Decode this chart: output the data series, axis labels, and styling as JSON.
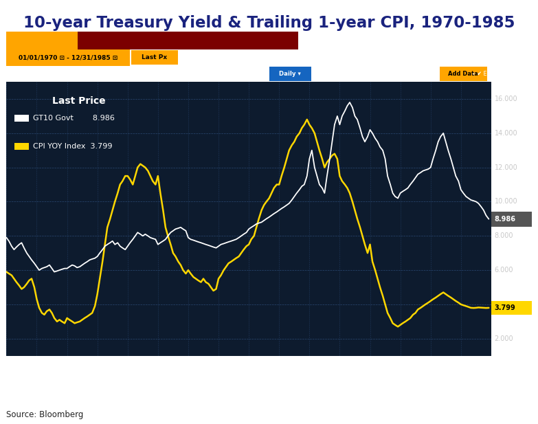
{
  "title": "10-year Treasury Yield & Trailing 1-year CPI, 1970-1985",
  "source": "Source: Bloomberg",
  "title_color": "#1a237e",
  "bg_dark": "#0d1b2e",
  "bg_plot": "#0d1b2e",
  "outer_bg": "#ffffff",
  "gt10_color": "#ffffff",
  "cpi_color": "#FFD700",
  "last_price_gt10": 8.986,
  "last_price_cpi": 3.799,
  "ylim": [
    1.0,
    17.0
  ],
  "yticks": [
    2.0,
    4.0,
    6.0,
    8.0,
    10.0,
    12.0,
    14.0,
    16.0
  ],
  "gt10_data_x": [
    1970.0,
    1970.08,
    1970.17,
    1970.25,
    1970.33,
    1970.42,
    1970.5,
    1970.58,
    1970.67,
    1970.75,
    1970.83,
    1970.92,
    1971.0,
    1971.08,
    1971.17,
    1971.25,
    1971.33,
    1971.42,
    1971.5,
    1971.58,
    1971.67,
    1971.75,
    1971.83,
    1971.92,
    1972.0,
    1972.08,
    1972.17,
    1972.25,
    1972.33,
    1972.42,
    1972.5,
    1972.58,
    1972.67,
    1972.75,
    1972.83,
    1972.92,
    1973.0,
    1973.08,
    1973.17,
    1973.25,
    1973.33,
    1973.42,
    1973.5,
    1973.58,
    1973.67,
    1973.75,
    1973.83,
    1973.92,
    1974.0,
    1974.08,
    1974.17,
    1974.25,
    1974.33,
    1974.42,
    1974.5,
    1974.58,
    1974.67,
    1974.75,
    1974.83,
    1974.92,
    1975.0,
    1975.08,
    1975.17,
    1975.25,
    1975.33,
    1975.42,
    1975.5,
    1975.58,
    1975.67,
    1975.75,
    1975.83,
    1975.92,
    1976.0,
    1976.08,
    1976.17,
    1976.25,
    1976.33,
    1976.42,
    1976.5,
    1976.58,
    1976.67,
    1976.75,
    1976.83,
    1976.92,
    1977.0,
    1977.08,
    1977.17,
    1977.25,
    1977.33,
    1977.42,
    1977.5,
    1977.58,
    1977.67,
    1977.75,
    1977.83,
    1977.92,
    1978.0,
    1978.08,
    1978.17,
    1978.25,
    1978.33,
    1978.42,
    1978.5,
    1978.58,
    1978.67,
    1978.75,
    1978.83,
    1978.92,
    1979.0,
    1979.08,
    1979.17,
    1979.25,
    1979.33,
    1979.42,
    1979.5,
    1979.58,
    1979.67,
    1979.75,
    1979.83,
    1979.92,
    1980.0,
    1980.08,
    1980.17,
    1980.25,
    1980.33,
    1980.42,
    1980.5,
    1980.58,
    1980.67,
    1980.75,
    1980.83,
    1980.92,
    1981.0,
    1981.08,
    1981.17,
    1981.25,
    1981.33,
    1981.42,
    1981.5,
    1981.58,
    1981.67,
    1981.75,
    1981.83,
    1981.92,
    1982.0,
    1982.08,
    1982.17,
    1982.25,
    1982.33,
    1982.42,
    1982.5,
    1982.58,
    1982.67,
    1982.75,
    1982.83,
    1982.92,
    1983.0,
    1983.08,
    1983.17,
    1983.25,
    1983.33,
    1983.42,
    1983.5,
    1983.58,
    1983.67,
    1983.75,
    1983.83,
    1983.92,
    1984.0,
    1984.08,
    1984.17,
    1984.25,
    1984.33,
    1984.42,
    1984.5,
    1984.58,
    1984.67,
    1984.75,
    1984.83,
    1984.92,
    1985.0,
    1985.08,
    1985.17,
    1985.25,
    1985.33,
    1985.42,
    1985.5,
    1985.58,
    1985.67,
    1985.75,
    1985.83,
    1985.92
  ],
  "gt10_data_y": [
    7.9,
    7.7,
    7.4,
    7.2,
    7.35,
    7.5,
    7.6,
    7.3,
    7.0,
    6.8,
    6.6,
    6.4,
    6.2,
    6.0,
    6.1,
    6.15,
    6.2,
    6.3,
    6.1,
    5.9,
    5.95,
    6.0,
    6.05,
    6.1,
    6.1,
    6.2,
    6.3,
    6.25,
    6.15,
    6.2,
    6.3,
    6.4,
    6.5,
    6.6,
    6.65,
    6.7,
    6.8,
    7.0,
    7.2,
    7.4,
    7.5,
    7.6,
    7.7,
    7.5,
    7.6,
    7.4,
    7.3,
    7.2,
    7.4,
    7.6,
    7.8,
    8.0,
    8.2,
    8.1,
    8.0,
    8.1,
    8.0,
    7.9,
    7.85,
    7.8,
    7.5,
    7.6,
    7.7,
    7.8,
    8.0,
    8.2,
    8.3,
    8.4,
    8.45,
    8.5,
    8.4,
    8.3,
    7.9,
    7.8,
    7.75,
    7.7,
    7.65,
    7.6,
    7.55,
    7.5,
    7.45,
    7.4,
    7.35,
    7.3,
    7.4,
    7.5,
    7.55,
    7.6,
    7.65,
    7.7,
    7.75,
    7.8,
    7.9,
    8.0,
    8.1,
    8.2,
    8.4,
    8.5,
    8.6,
    8.7,
    8.75,
    8.8,
    8.9,
    9.0,
    9.1,
    9.2,
    9.3,
    9.4,
    9.5,
    9.6,
    9.7,
    9.8,
    9.9,
    10.1,
    10.3,
    10.5,
    10.7,
    10.9,
    11.0,
    11.5,
    12.5,
    13.0,
    12.0,
    11.5,
    11.0,
    10.8,
    10.5,
    11.5,
    12.5,
    13.5,
    14.5,
    15.0,
    14.5,
    15.0,
    15.3,
    15.6,
    15.8,
    15.5,
    15.0,
    14.8,
    14.3,
    13.8,
    13.5,
    13.8,
    14.2,
    14.0,
    13.7,
    13.5,
    13.2,
    13.0,
    12.5,
    11.5,
    11.0,
    10.5,
    10.3,
    10.2,
    10.5,
    10.6,
    10.7,
    10.8,
    11.0,
    11.2,
    11.4,
    11.6,
    11.7,
    11.8,
    11.85,
    11.9,
    12.0,
    12.5,
    13.0,
    13.5,
    13.8,
    14.0,
    13.5,
    13.0,
    12.5,
    12.0,
    11.5,
    11.2,
    10.7,
    10.5,
    10.3,
    10.2,
    10.1,
    10.05,
    10.0,
    9.9,
    9.7,
    9.5,
    9.2,
    8.986
  ],
  "cpi_data_x": [
    1970.0,
    1970.08,
    1970.17,
    1970.25,
    1970.33,
    1970.42,
    1970.5,
    1970.58,
    1970.67,
    1970.75,
    1970.83,
    1970.92,
    1971.0,
    1971.08,
    1971.17,
    1971.25,
    1971.33,
    1971.42,
    1971.5,
    1971.58,
    1971.67,
    1971.75,
    1971.83,
    1971.92,
    1972.0,
    1972.08,
    1972.17,
    1972.25,
    1972.33,
    1972.42,
    1972.5,
    1972.58,
    1972.67,
    1972.75,
    1972.83,
    1972.92,
    1973.0,
    1973.08,
    1973.17,
    1973.25,
    1973.33,
    1973.42,
    1973.5,
    1973.58,
    1973.67,
    1973.75,
    1973.83,
    1973.92,
    1974.0,
    1974.08,
    1974.17,
    1974.25,
    1974.33,
    1974.42,
    1974.5,
    1974.58,
    1974.67,
    1974.75,
    1974.83,
    1974.92,
    1975.0,
    1975.08,
    1975.17,
    1975.25,
    1975.33,
    1975.42,
    1975.5,
    1975.58,
    1975.67,
    1975.75,
    1975.83,
    1975.92,
    1976.0,
    1976.08,
    1976.17,
    1976.25,
    1976.33,
    1976.42,
    1976.5,
    1976.58,
    1976.67,
    1976.75,
    1976.83,
    1976.92,
    1977.0,
    1977.08,
    1977.17,
    1977.25,
    1977.33,
    1977.42,
    1977.5,
    1977.58,
    1977.67,
    1977.75,
    1977.83,
    1977.92,
    1978.0,
    1978.08,
    1978.17,
    1978.25,
    1978.33,
    1978.42,
    1978.5,
    1978.58,
    1978.67,
    1978.75,
    1978.83,
    1978.92,
    1979.0,
    1979.08,
    1979.17,
    1979.25,
    1979.33,
    1979.42,
    1979.5,
    1979.58,
    1979.67,
    1979.75,
    1979.83,
    1979.92,
    1980.0,
    1980.08,
    1980.17,
    1980.25,
    1980.33,
    1980.42,
    1980.5,
    1980.58,
    1980.67,
    1980.75,
    1980.83,
    1980.92,
    1981.0,
    1981.08,
    1981.17,
    1981.25,
    1981.33,
    1981.42,
    1981.5,
    1981.58,
    1981.67,
    1981.75,
    1981.83,
    1981.92,
    1982.0,
    1982.08,
    1982.17,
    1982.25,
    1982.33,
    1982.42,
    1982.5,
    1982.58,
    1982.67,
    1982.75,
    1982.83,
    1982.92,
    1983.0,
    1983.08,
    1983.17,
    1983.25,
    1983.33,
    1983.42,
    1983.5,
    1983.58,
    1983.67,
    1983.75,
    1983.83,
    1983.92,
    1984.0,
    1984.08,
    1984.17,
    1984.25,
    1984.33,
    1984.42,
    1984.5,
    1984.58,
    1984.67,
    1984.75,
    1984.83,
    1984.92,
    1985.0,
    1985.08,
    1985.17,
    1985.25,
    1985.33,
    1985.42,
    1985.5,
    1985.58,
    1985.67,
    1985.75,
    1985.83,
    1985.92
  ],
  "cpi_data_y": [
    5.9,
    5.8,
    5.7,
    5.5,
    5.3,
    5.1,
    4.9,
    5.0,
    5.2,
    5.4,
    5.5,
    5.0,
    4.3,
    3.8,
    3.5,
    3.4,
    3.6,
    3.7,
    3.5,
    3.2,
    3.0,
    3.1,
    3.0,
    2.9,
    3.2,
    3.1,
    3.0,
    2.9,
    2.95,
    3.0,
    3.1,
    3.2,
    3.3,
    3.4,
    3.5,
    3.9,
    4.6,
    5.5,
    6.5,
    7.5,
    8.5,
    9.0,
    9.5,
    10.0,
    10.5,
    11.0,
    11.2,
    11.5,
    11.5,
    11.3,
    11.0,
    11.5,
    12.0,
    12.2,
    12.1,
    12.0,
    11.8,
    11.5,
    11.2,
    11.0,
    11.5,
    10.5,
    9.5,
    8.5,
    8.0,
    7.5,
    7.0,
    6.8,
    6.5,
    6.3,
    6.0,
    5.8,
    6.0,
    5.8,
    5.6,
    5.5,
    5.4,
    5.3,
    5.5,
    5.3,
    5.2,
    5.0,
    4.8,
    4.9,
    5.5,
    5.7,
    6.0,
    6.2,
    6.4,
    6.5,
    6.6,
    6.7,
    6.8,
    7.0,
    7.2,
    7.4,
    7.5,
    7.8,
    8.0,
    8.5,
    9.0,
    9.5,
    9.8,
    10.0,
    10.2,
    10.5,
    10.8,
    11.0,
    11.0,
    11.5,
    12.0,
    12.5,
    13.0,
    13.3,
    13.5,
    13.8,
    14.0,
    14.3,
    14.5,
    14.8,
    14.5,
    14.3,
    14.0,
    13.5,
    13.0,
    12.5,
    12.0,
    12.3,
    12.5,
    12.7,
    12.8,
    12.5,
    11.5,
    11.2,
    11.0,
    10.8,
    10.5,
    10.0,
    9.5,
    9.0,
    8.5,
    8.0,
    7.5,
    7.0,
    7.5,
    6.5,
    6.0,
    5.5,
    5.0,
    4.5,
    4.0,
    3.5,
    3.2,
    2.9,
    2.8,
    2.7,
    2.8,
    2.9,
    3.0,
    3.1,
    3.2,
    3.4,
    3.5,
    3.7,
    3.8,
    3.9,
    4.0,
    4.1,
    4.2,
    4.3,
    4.4,
    4.5,
    4.6,
    4.7,
    4.6,
    4.5,
    4.4,
    4.3,
    4.2,
    4.1,
    4.0,
    3.95,
    3.9,
    3.85,
    3.8,
    3.79,
    3.8,
    3.82,
    3.81,
    3.8,
    3.79,
    3.799
  ]
}
